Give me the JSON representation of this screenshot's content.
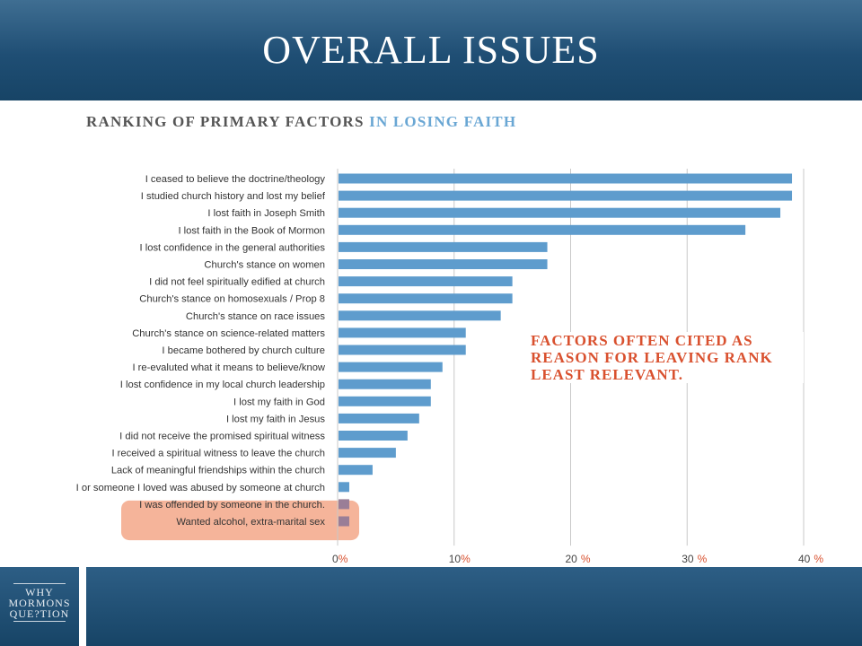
{
  "slide": {
    "title": "OVERALL  ISSUES"
  },
  "chart_title": {
    "part1": "RANKING OF PRIMARY FACTORS",
    "part2": "IN LOSING FAITH"
  },
  "callout": {
    "text": "FACTORS OFTEN CITED AS REASON FOR LEAVING RANK LEAST RELEVANT."
  },
  "logo": {
    "line1": "WHY",
    "line2": "MORMONS",
    "line3": "QUE?TION"
  },
  "colors": {
    "bar": "#5e9ccd",
    "highlight_bar": "#9a7e97",
    "highlight_box": "#f5b49a",
    "callout": "#d9512f",
    "header": "#1f4e74"
  },
  "chart_data": {
    "type": "bar",
    "orientation": "horizontal",
    "categories": [
      "I ceased to believe the doctrine/theology",
      "I studied church history and lost my belief",
      "I lost faith in Joseph Smith",
      "I lost faith in the Book of Mormon",
      "I lost confidence in the general authorities",
      "Church's stance on women",
      "I did not feel spiritually edified at church",
      "Church's stance on homosexuals / Prop 8",
      "Church's stance on race issues",
      "Church's stance on science-related matters",
      "I became bothered by church culture",
      "I re-evaluted what it means to believe/know",
      "I lost confidence in my local church leadership",
      "I lost my faith in God",
      "I lost my faith in Jesus",
      "I did not receive the promised spiritual witness",
      "I received a spiritual witness to leave the church",
      "Lack of meaningful friendships within the church",
      "I or someone I loved was abused by someone at church",
      "I was offended by someone in the church.",
      "Wanted alcohol, extra-marital sex"
    ],
    "values": [
      39,
      39,
      38,
      35,
      18,
      18,
      15,
      15,
      14,
      11,
      11,
      9,
      8,
      8,
      7,
      6,
      5,
      3,
      1,
      1,
      1
    ],
    "highlighted": [
      false,
      false,
      false,
      false,
      false,
      false,
      false,
      false,
      false,
      false,
      false,
      false,
      false,
      false,
      false,
      false,
      false,
      false,
      false,
      true,
      true
    ],
    "xlim": [
      0,
      40
    ],
    "xticks": [
      {
        "value": 0,
        "label": "0",
        "unit": "%"
      },
      {
        "value": 10,
        "label": "10",
        "unit": "%"
      },
      {
        "value": 20,
        "label": "20",
        "unit": "%"
      },
      {
        "value": 30,
        "label": "30",
        "unit": "%"
      },
      {
        "value": 40,
        "label": "40",
        "unit": "%"
      }
    ],
    "grid": true,
    "title": "RANKING OF PRIMARY FACTORS IN LOSING FAITH"
  }
}
